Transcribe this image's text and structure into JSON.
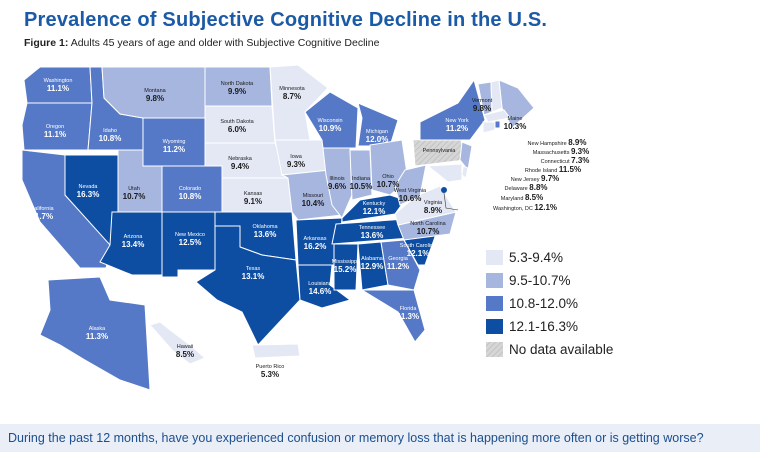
{
  "title": "Prevalence of Subjective Cognitive Decline in the U.S.",
  "subtitle_prefix": "Figure 1:",
  "subtitle": "Adults 45 years of age and older with Subjective Cognitive Decline",
  "question": "During the past 12 months, have you experienced confusion or memory loss that is happening more often or is getting worse?",
  "legend": [
    {
      "label": "5.3-9.4%",
      "min": 5.3,
      "max": 9.4,
      "color": "#e3e8f4"
    },
    {
      "label": "9.5-10.7%",
      "min": 9.5,
      "max": 10.7,
      "color": "#a6b6df"
    },
    {
      "label": "10.8-12.0%",
      "min": 10.8,
      "max": 12.0,
      "color": "#5579c6"
    },
    {
      "label": "12.1-16.3%",
      "min": 12.1,
      "max": 16.3,
      "color": "#0d4ea3"
    },
    {
      "label": "No data available",
      "color": "#d0d0d0"
    }
  ],
  "states": [
    {
      "name": "Washington",
      "value": "11.1%"
    },
    {
      "name": "Oregon",
      "value": "11.1%"
    },
    {
      "name": "California",
      "value": "11.7%"
    },
    {
      "name": "Idaho",
      "value": "10.8%"
    },
    {
      "name": "Nevada",
      "value": "16.3%"
    },
    {
      "name": "Montana",
      "value": "9.8%"
    },
    {
      "name": "Wyoming",
      "value": "11.2%"
    },
    {
      "name": "Utah",
      "value": "10.7%"
    },
    {
      "name": "Colorado",
      "value": "10.8%"
    },
    {
      "name": "Arizona",
      "value": "13.4%"
    },
    {
      "name": "New Mexico",
      "value": "12.5%"
    },
    {
      "name": "North Dakota",
      "value": "9.9%"
    },
    {
      "name": "South Dakota",
      "value": "6.0%"
    },
    {
      "name": "Nebraska",
      "value": "9.4%"
    },
    {
      "name": "Kansas",
      "value": "9.1%"
    },
    {
      "name": "Oklahoma",
      "value": "13.6%"
    },
    {
      "name": "Texas",
      "value": "13.1%"
    },
    {
      "name": "Minnesota",
      "value": "8.7%"
    },
    {
      "name": "Iowa",
      "value": "9.3%"
    },
    {
      "name": "Missouri",
      "value": "10.4%"
    },
    {
      "name": "Arkansas",
      "value": "16.2%"
    },
    {
      "name": "Louisiana",
      "value": "14.6%"
    },
    {
      "name": "Wisconsin",
      "value": "10.9%"
    },
    {
      "name": "Illinois",
      "value": "9.6%"
    },
    {
      "name": "Indiana",
      "value": "10.5%"
    },
    {
      "name": "Michigan",
      "value": "12.0%"
    },
    {
      "name": "Ohio",
      "value": "10.7%"
    },
    {
      "name": "Kentucky",
      "value": "12.1%"
    },
    {
      "name": "Tennessee",
      "value": "13.6%"
    },
    {
      "name": "Mississippi",
      "value": "15.2%"
    },
    {
      "name": "Alabama",
      "value": "12.9%"
    },
    {
      "name": "Georgia",
      "value": "11.2%"
    },
    {
      "name": "Florida",
      "value": "11.3%"
    },
    {
      "name": "South Carolina",
      "value": "12.1%"
    },
    {
      "name": "North Carolina",
      "value": "10.7%"
    },
    {
      "name": "Virginia",
      "value": "8.9%"
    },
    {
      "name": "West Virginia",
      "value": "10.6%"
    },
    {
      "name": "Pennsylvania",
      "value": null
    },
    {
      "name": "New York",
      "value": "11.2%"
    },
    {
      "name": "Vermont",
      "value": "9.8%"
    },
    {
      "name": "Maine",
      "value": "10.3%"
    },
    {
      "name": "New Hampshire",
      "value": "8.9%"
    },
    {
      "name": "Massachusetts",
      "value": "9.3%"
    },
    {
      "name": "Connecticut",
      "value": "7.3%"
    },
    {
      "name": "Rhode Island",
      "value": "11.5%"
    },
    {
      "name": "New Jersey",
      "value": "9.7%"
    },
    {
      "name": "Delaware",
      "value": "8.8%"
    },
    {
      "name": "Maryland",
      "value": "8.5%"
    },
    {
      "name": "Washington, DC",
      "value": "12.1%"
    },
    {
      "name": "Alaska",
      "value": "11.3%"
    },
    {
      "name": "Hawaii",
      "value": "8.5%"
    },
    {
      "name": "Puerto Rico",
      "value": "5.3%"
    }
  ]
}
